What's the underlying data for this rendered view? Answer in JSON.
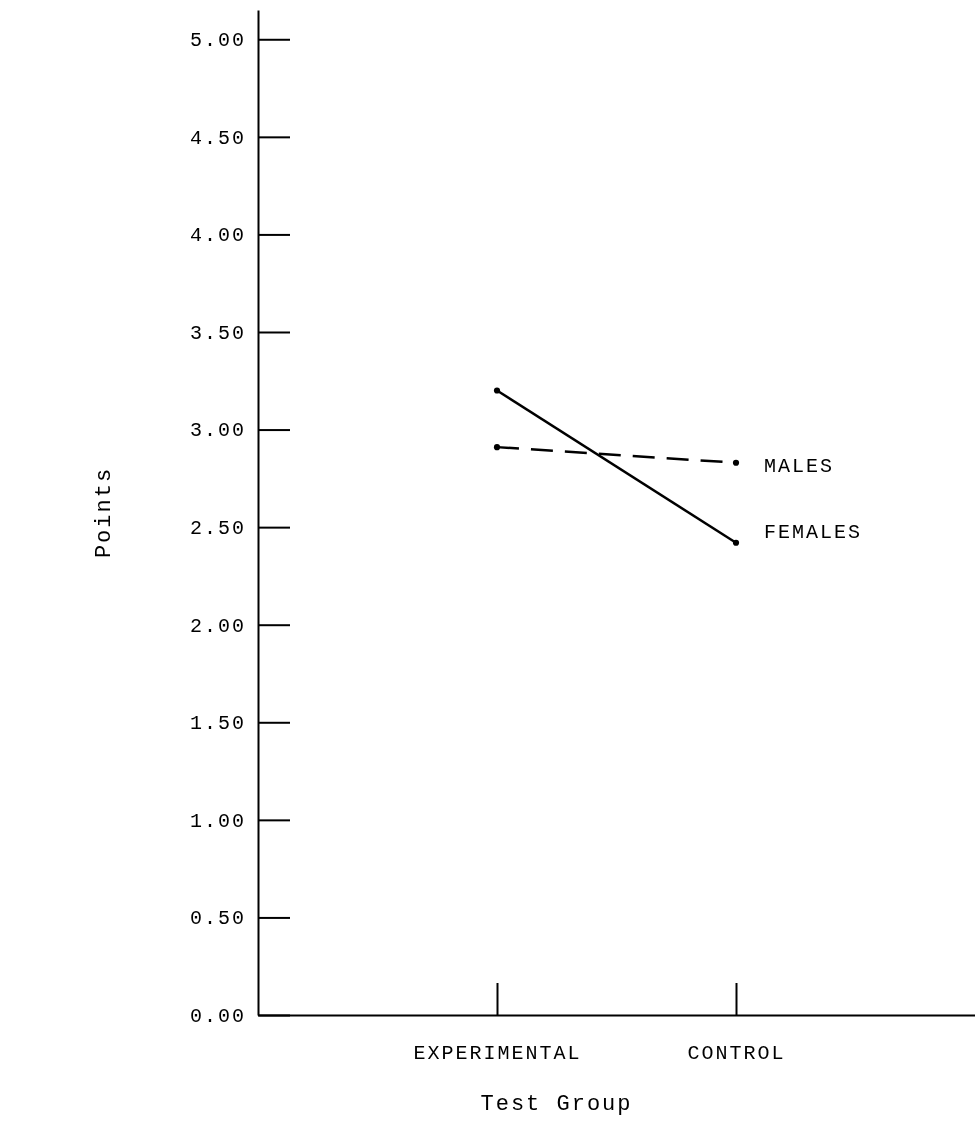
{
  "chart_data": {
    "type": "line",
    "xlabel": "Test Group",
    "ylabel": "Points",
    "categories": [
      "EXPERIMENTAL",
      "CONTROL"
    ],
    "ylim": [
      0,
      5.15
    ],
    "yticks": [
      {
        "value": 0,
        "label": "0.00"
      },
      {
        "value": 0.5,
        "label": "0.50"
      },
      {
        "value": 1,
        "label": "1.00"
      },
      {
        "value": 1.5,
        "label": "1.50"
      },
      {
        "value": 2,
        "label": "2.00"
      },
      {
        "value": 2.5,
        "label": "2.50"
      },
      {
        "value": 3,
        "label": "3.00"
      },
      {
        "value": 3.5,
        "label": "3.50"
      },
      {
        "value": 4,
        "label": "4.00"
      },
      {
        "value": 4.5,
        "label": "4.50"
      },
      {
        "value": 5,
        "label": "5.00"
      }
    ],
    "series": [
      {
        "name": "MALES",
        "color": "#000000",
        "values": [
          2.91,
          2.83
        ],
        "line_style": "dashed"
      },
      {
        "name": "FEMALES",
        "color": "#000000",
        "values": [
          3.2,
          2.42
        ],
        "line_style": "solid"
      }
    ],
    "marker": "circle",
    "legend": false,
    "grid": false
  }
}
